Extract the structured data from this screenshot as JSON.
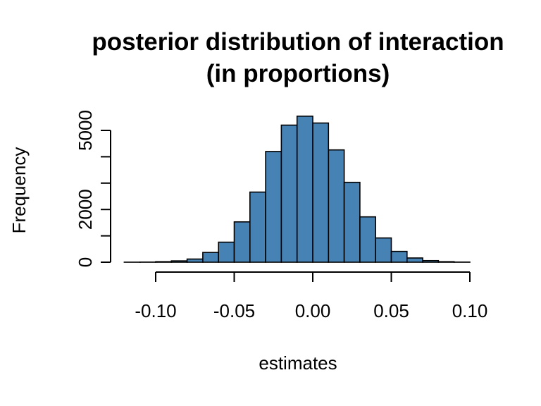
{
  "chart_data": {
    "type": "bar",
    "title_line1": "posterior distribution of interaction",
    "title_line2": "(in proportions)",
    "xlabel": "estimates",
    "ylabel": "Frequency",
    "xlim": [
      -0.12,
      0.1
    ],
    "ylim": [
      0,
      5000
    ],
    "x_ticks": [
      -0.1,
      -0.05,
      0.0,
      0.05,
      0.1
    ],
    "x_tick_labels": [
      "-0.10",
      "-0.05",
      "0.00",
      "0.05",
      "0.10"
    ],
    "y_ticks": [
      0,
      1000,
      2000,
      3000,
      4000,
      5000
    ],
    "y_tick_labels": [
      "0",
      "",
      "2000",
      "",
      "",
      "5000"
    ],
    "bin_width": 0.01,
    "bin_starts": [
      -0.12,
      -0.11,
      -0.1,
      -0.09,
      -0.08,
      -0.07,
      -0.06,
      -0.05,
      -0.04,
      -0.03,
      -0.02,
      -0.01,
      0.0,
      0.01,
      0.02,
      0.03,
      0.04,
      0.05,
      0.06,
      0.07,
      0.08,
      0.09
    ],
    "counts": [
      2,
      5,
      20,
      50,
      120,
      370,
      760,
      1530,
      2660,
      4200,
      5200,
      5540,
      5280,
      4260,
      3030,
      1720,
      920,
      410,
      160,
      60,
      20,
      5
    ],
    "bar_color": "#4682b4"
  }
}
